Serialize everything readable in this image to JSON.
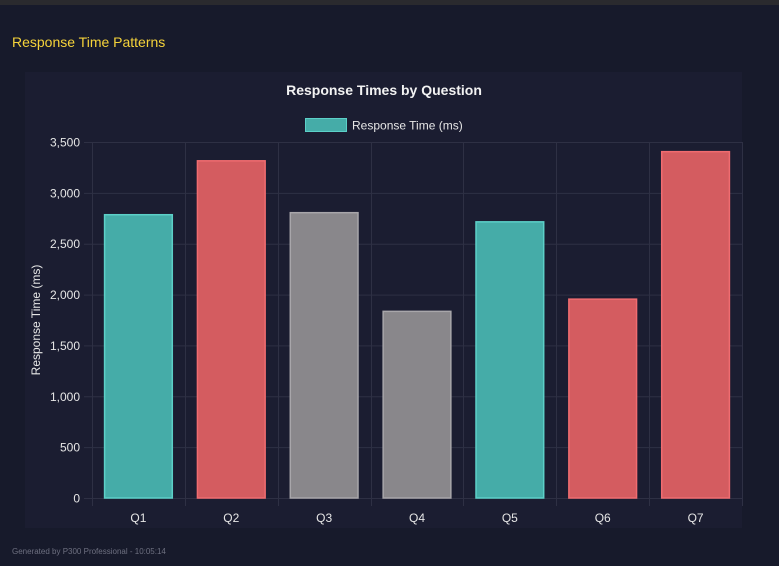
{
  "section_title": "Response Time Patterns",
  "footer": "Generated by P300 Professional - 10:05:14",
  "colors": {
    "teal": "#45aca8",
    "red": "#d45c60",
    "gray": "#89878b",
    "title": "#f5d33a"
  },
  "chart_data": {
    "type": "bar",
    "title": "Response Times by Question",
    "legend": [
      "Response Time (ms)"
    ],
    "legend_placement": "top",
    "xlabel": "",
    "ylabel": "Response Time (ms)",
    "ylim": [
      0,
      3500
    ],
    "yticks": [
      0,
      500,
      1000,
      1500,
      2000,
      2500,
      3000,
      3500
    ],
    "ytick_labels": [
      "0",
      "500",
      "1,000",
      "1,500",
      "2,000",
      "2,500",
      "3,000",
      "3,500"
    ],
    "grid": true,
    "categories": [
      "Q1",
      "Q2",
      "Q3",
      "Q4",
      "Q5",
      "Q6",
      "Q7"
    ],
    "series": [
      {
        "name": "Response Time (ms)",
        "values": [
          2790,
          3320,
          2810,
          1840,
          2720,
          1960,
          3410
        ],
        "colors": [
          "teal",
          "red",
          "gray",
          "gray",
          "teal",
          "red",
          "red"
        ]
      }
    ]
  }
}
